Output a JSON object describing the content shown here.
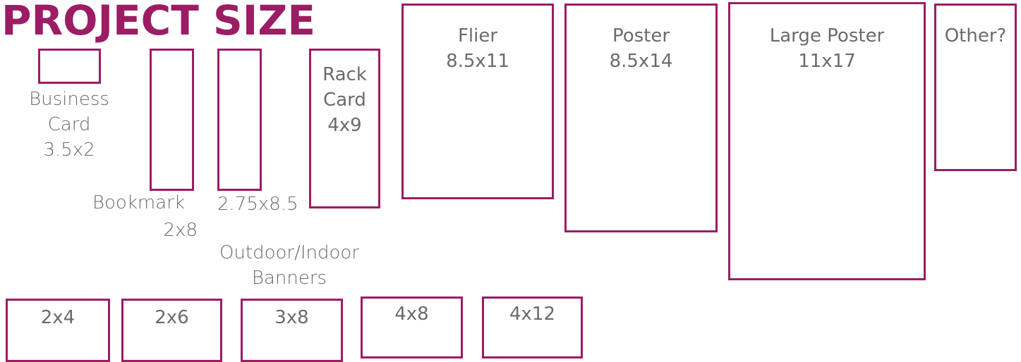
{
  "title": "PROJECT SIZE",
  "accent_color": "#9b1d64",
  "text_color": "#6b6b6b",
  "business_card": {
    "name_1": "Business",
    "name_2": "Card",
    "size": "3.5x2"
  },
  "bookmark": {
    "name": "Bookmark",
    "size": "2x8"
  },
  "bookmark_alt": {
    "size": "2.75x8.5"
  },
  "rack_card": {
    "name_1": "Rack",
    "name_2": "Card",
    "size": "4x9"
  },
  "flier": {
    "name": "Flier",
    "size": "8.5x11"
  },
  "poster": {
    "name": "Poster",
    "size": "8.5x14"
  },
  "large_poster": {
    "name": "Large Poster",
    "size": "11x17"
  },
  "other": {
    "name": "Other?"
  },
  "banners": {
    "heading_1": "Outdoor/Indoor",
    "heading_2": "Banners",
    "sizes": [
      "2x4",
      "2x6",
      "3x8",
      "4x8",
      "4x12"
    ]
  }
}
